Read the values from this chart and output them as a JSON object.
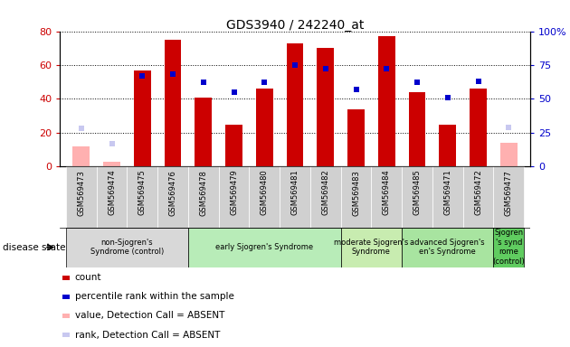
{
  "title": "GDS3940 / 242240_at",
  "samples": [
    "GSM569473",
    "GSM569474",
    "GSM569475",
    "GSM569476",
    "GSM569478",
    "GSM569479",
    "GSM569480",
    "GSM569481",
    "GSM569482",
    "GSM569483",
    "GSM569484",
    "GSM569485",
    "GSM569471",
    "GSM569472",
    "GSM569477"
  ],
  "count": [
    null,
    null,
    57,
    75,
    41,
    25,
    46,
    73,
    70,
    34,
    77,
    44,
    25,
    46,
    null
  ],
  "percentile": [
    null,
    null,
    67,
    68,
    62,
    55,
    62,
    75,
    72,
    57,
    72,
    62,
    51,
    63,
    null
  ],
  "count_absent": [
    12,
    3,
    null,
    null,
    null,
    null,
    null,
    null,
    null,
    null,
    null,
    null,
    null,
    null,
    14
  ],
  "rank_absent": [
    28,
    17,
    null,
    null,
    null,
    null,
    null,
    null,
    null,
    null,
    null,
    null,
    null,
    null,
    29
  ],
  "ylim_left": [
    0,
    80
  ],
  "ylim_right": [
    0,
    100
  ],
  "yticks_left": [
    0,
    20,
    40,
    60,
    80
  ],
  "yticks_right": [
    0,
    25,
    50,
    75,
    100
  ],
  "yticklabels_right": [
    "0",
    "25",
    "50",
    "75",
    "100%"
  ],
  "groups": [
    {
      "label": "non-Sjogren's\nSyndrome (control)",
      "start": 0,
      "end": 4,
      "color": "#d8d8d8"
    },
    {
      "label": "early Sjogren's Syndrome",
      "start": 4,
      "end": 9,
      "color": "#b8ecb8"
    },
    {
      "label": "moderate Sjogren's\nSyndrome",
      "start": 9,
      "end": 11,
      "color": "#c8ecb0"
    },
    {
      "label": "advanced Sjogren's\nen's Syndrome",
      "start": 11,
      "end": 14,
      "color": "#a8e4a0"
    },
    {
      "label": "Sjogren\n's synd\nrome\n(control)",
      "start": 14,
      "end": 15,
      "color": "#60cc60"
    }
  ],
  "bar_width": 0.55,
  "count_color": "#cc0000",
  "percentile_color": "#0000cc",
  "absent_count_color": "#ffb0b0",
  "absent_rank_color": "#c8c8f0",
  "legend_labels": [
    "count",
    "percentile rank within the sample",
    "value, Detection Call = ABSENT",
    "rank, Detection Call = ABSENT"
  ],
  "legend_colors": [
    "#cc0000",
    "#0000cc",
    "#ffb0b0",
    "#c8c8f0"
  ],
  "disease_label": "disease state",
  "tick_bg_color": "#d0d0d0"
}
